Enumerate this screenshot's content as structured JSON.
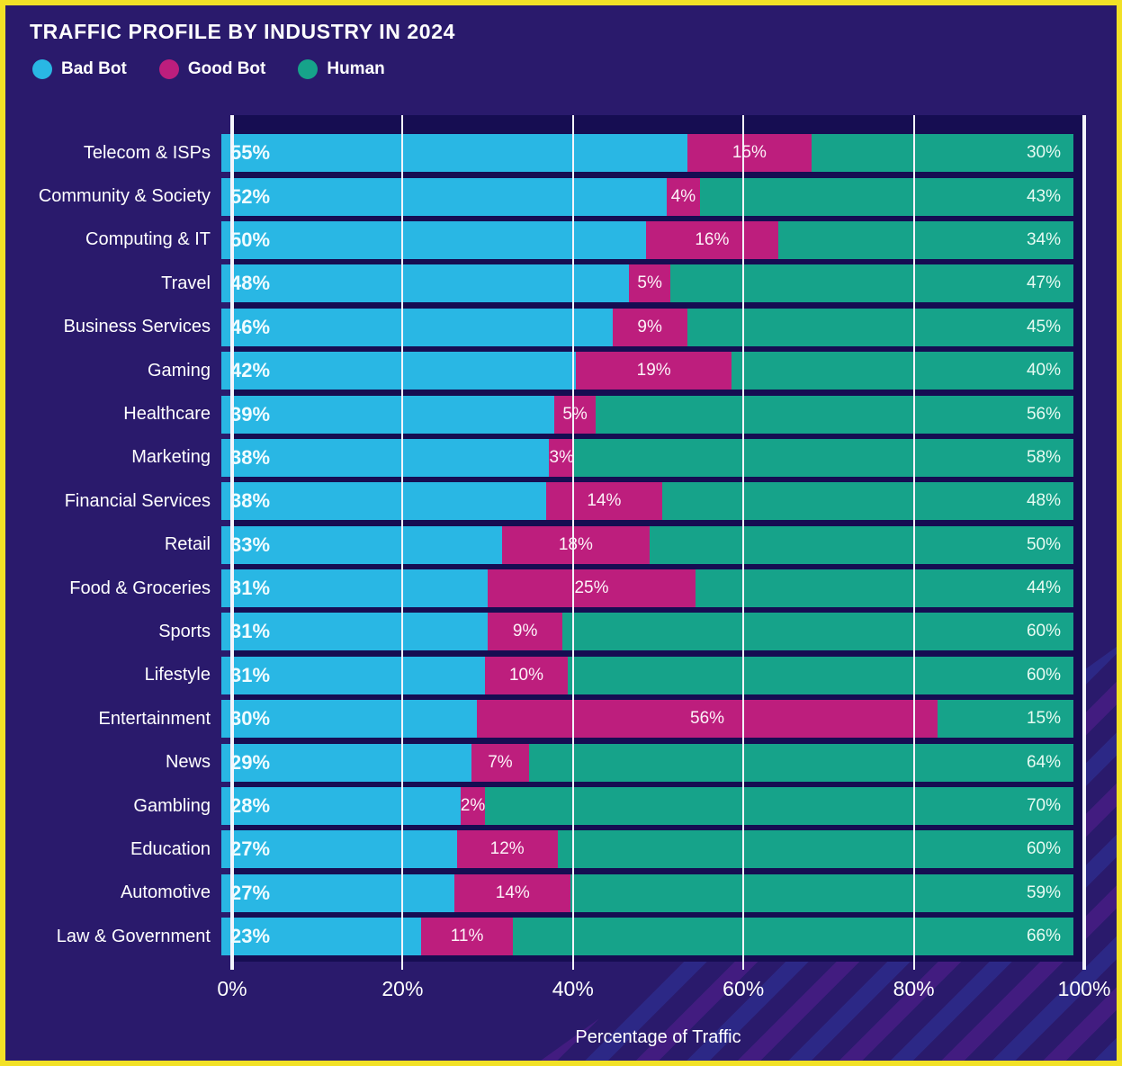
{
  "title": "TRAFFIC PROFILE BY INDUSTRY IN 2024",
  "legend": [
    {
      "label": "Bad Bot",
      "color": "#29b7e4"
    },
    {
      "label": "Good Bot",
      "color": "#bd1e7d"
    },
    {
      "label": "Human",
      "color": "#16a38a"
    }
  ],
  "colors": {
    "background": "#2a1a6c",
    "plot_background": "#160d52",
    "border": "#f2e126",
    "gridline": "#f4f4fb",
    "bad_bot": "#29b7e4",
    "good_bot": "#bd1e7d",
    "human": "#16a38a",
    "text": "#ffffff"
  },
  "x_axis": {
    "ticks": [
      "0%",
      "20%",
      "40%",
      "60%",
      "80%",
      "100%"
    ],
    "label": "Percentage of Traffic"
  },
  "chart_data": {
    "type": "bar",
    "stacked": true,
    "orientation": "horizontal",
    "title": "TRAFFIC PROFILE BY INDUSTRY IN 2024",
    "xlabel": "Percentage of Traffic",
    "ylabel": "",
    "xlim": [
      0,
      100
    ],
    "grid": true,
    "legend_position": "top-left",
    "value_label_format": "percent",
    "categories": [
      "Telecom & ISPs",
      "Community & Society",
      "Computing & IT",
      "Travel",
      "Business Services",
      "Gaming",
      "Healthcare",
      "Marketing",
      "Financial Services",
      "Retail",
      "Food & Groceries",
      "Sports",
      "Lifestyle",
      "Entertainment",
      "News",
      "Gambling",
      "Education",
      "Automotive",
      "Law & Government"
    ],
    "series": [
      {
        "name": "Bad Bot",
        "color": "#29b7e4",
        "values": [
          55,
          52,
          50,
          48,
          46,
          42,
          39,
          38,
          38,
          33,
          31,
          31,
          31,
          30,
          29,
          28,
          27,
          27,
          23
        ]
      },
      {
        "name": "Good Bot",
        "color": "#bd1e7d",
        "values": [
          15,
          4,
          16,
          5,
          9,
          19,
          5,
          3,
          14,
          18,
          25,
          9,
          10,
          56,
          7,
          2,
          12,
          14,
          11
        ]
      },
      {
        "name": "Human",
        "color": "#16a38a",
        "values": [
          30,
          43,
          34,
          47,
          45,
          40,
          56,
          58,
          48,
          50,
          44,
          60,
          60,
          15,
          64,
          70,
          60,
          59,
          66
        ]
      }
    ]
  }
}
